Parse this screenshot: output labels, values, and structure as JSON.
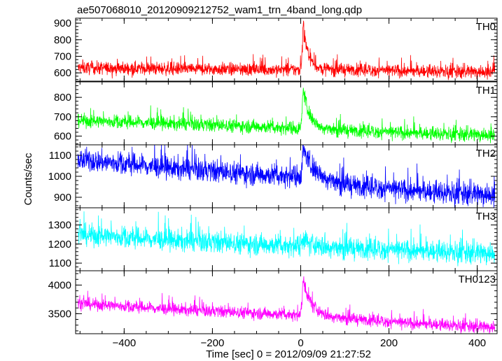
{
  "chart_data": {
    "type": "line",
    "title": "ae507068010_20120909212752_wam1_trn_4band_long.qdp",
    "xlabel": "Time [sec] 0 = 2012/09/09 21:27:52",
    "ylabel": "Counts/sec",
    "xlim": [
      -510,
      445
    ],
    "x_ticks": [
      -400,
      -200,
      0,
      200,
      400
    ],
    "grid": false,
    "panels": [
      {
        "name": "TH0",
        "color": "#ff0000",
        "ylim": [
          550,
          930
        ],
        "y_ticks": [
          600,
          700,
          800,
          900
        ],
        "baseline": [
          [
            -505,
            630
          ],
          [
            -300,
            625
          ],
          [
            -100,
            620
          ],
          [
            0,
            618
          ],
          [
            100,
            620
          ],
          [
            250,
            610
          ],
          [
            440,
            605
          ]
        ],
        "noise": 28,
        "peak": {
          "x": 5,
          "y": 930,
          "decay": 12
        }
      },
      {
        "name": "TH1",
        "color": "#00ff00",
        "ylim": [
          555,
          880
        ],
        "y_ticks": [
          600,
          700,
          800
        ],
        "baseline": [
          [
            -505,
            680
          ],
          [
            -300,
            665
          ],
          [
            -100,
            650
          ],
          [
            0,
            640
          ],
          [
            100,
            630
          ],
          [
            250,
            615
          ],
          [
            440,
            605
          ]
        ],
        "noise": 25,
        "peak": {
          "x": 5,
          "y": 880,
          "decay": 15
        }
      },
      {
        "name": "TH2",
        "color": "#0000ff",
        "ylim": [
          850,
          1150
        ],
        "y_ticks": [
          900,
          1000,
          1100
        ],
        "baseline": [
          [
            -505,
            1080
          ],
          [
            -300,
            1040
          ],
          [
            -100,
            1010
          ],
          [
            0,
            1000
          ],
          [
            100,
            960
          ],
          [
            250,
            930
          ],
          [
            440,
            910
          ]
        ],
        "noise": 38,
        "peak": {
          "x": 5,
          "y": 1150,
          "decay": 25
        }
      },
      {
        "name": "TH3",
        "color": "#00ffff",
        "ylim": [
          1060,
          1390
        ],
        "y_ticks": [
          1100,
          1200,
          1300
        ],
        "baseline": [
          [
            -505,
            1250
          ],
          [
            -300,
            1220
          ],
          [
            -100,
            1200
          ],
          [
            0,
            1190
          ],
          [
            100,
            1180
          ],
          [
            250,
            1165
          ],
          [
            440,
            1150
          ]
        ],
        "noise": 40,
        "peak": {
          "x": 5,
          "y": 1240,
          "decay": 15
        }
      },
      {
        "name": "TH0123",
        "color": "#ff00ff",
        "ylim": [
          3150,
          4250
        ],
        "y_ticks": [
          3500,
          4000
        ],
        "baseline": [
          [
            -505,
            3680
          ],
          [
            -300,
            3580
          ],
          [
            -100,
            3510
          ],
          [
            0,
            3480
          ],
          [
            100,
            3420
          ],
          [
            250,
            3330
          ],
          [
            440,
            3260
          ]
        ],
        "noise": 75,
        "peak": {
          "x": 5,
          "y": 4200,
          "decay": 18
        }
      }
    ]
  }
}
